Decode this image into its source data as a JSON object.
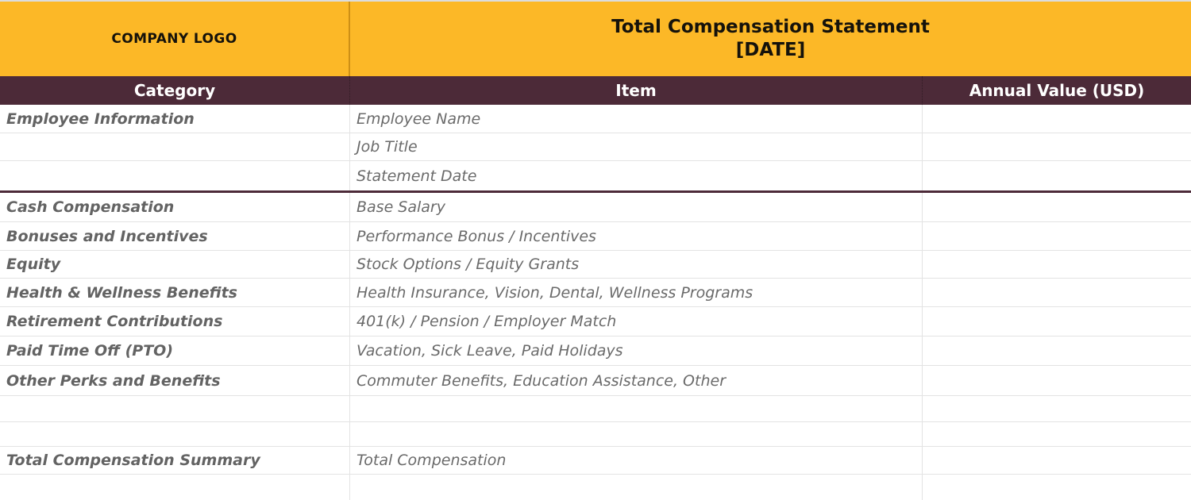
{
  "banner": {
    "logo": "COMPANY LOGO",
    "title_line1": "Total Compensation Statement",
    "title_line2": "[DATE]"
  },
  "columns": {
    "category": "Category",
    "item": "Item",
    "value": "Annual Value (USD)"
  },
  "rows": [
    {
      "category": "Employee Information",
      "item": "Employee Name",
      "value": ""
    },
    {
      "category": "",
      "item": "Job Title",
      "value": ""
    },
    {
      "category": "",
      "item": "Statement Date",
      "value": "",
      "section_end": true
    },
    {
      "category": "Cash Compensation",
      "item": "Base Salary",
      "value": ""
    },
    {
      "category": "Bonuses and Incentives",
      "item": "Performance Bonus / Incentives",
      "value": ""
    },
    {
      "category": "Equity",
      "item": "Stock Options / Equity Grants",
      "value": ""
    },
    {
      "category": "Health & Wellness Benefits",
      "item": "Health Insurance, Vision, Dental, Wellness Programs",
      "value": ""
    },
    {
      "category": "Retirement Contributions",
      "item": "401(k) / Pension / Employer Match",
      "value": ""
    },
    {
      "category": "Paid Time Off (PTO)",
      "item": "Vacation, Sick Leave, Paid Holidays",
      "value": ""
    },
    {
      "category": "Other Perks and Benefits",
      "item": "Commuter Benefits, Education Assistance, Other",
      "value": ""
    },
    {
      "category": "",
      "item": "",
      "value": ""
    },
    {
      "category": "",
      "item": "",
      "value": ""
    },
    {
      "category": "Total Compensation Summary",
      "item": "Total Compensation",
      "value": ""
    },
    {
      "category": "",
      "item": "",
      "value": ""
    }
  ],
  "colors": {
    "banner_yellow": "#FCB827",
    "header_maroon": "#4C2A38",
    "grid_line": "#E3E3E3",
    "category_text": "#636363",
    "item_text": "#6A6A6A"
  }
}
